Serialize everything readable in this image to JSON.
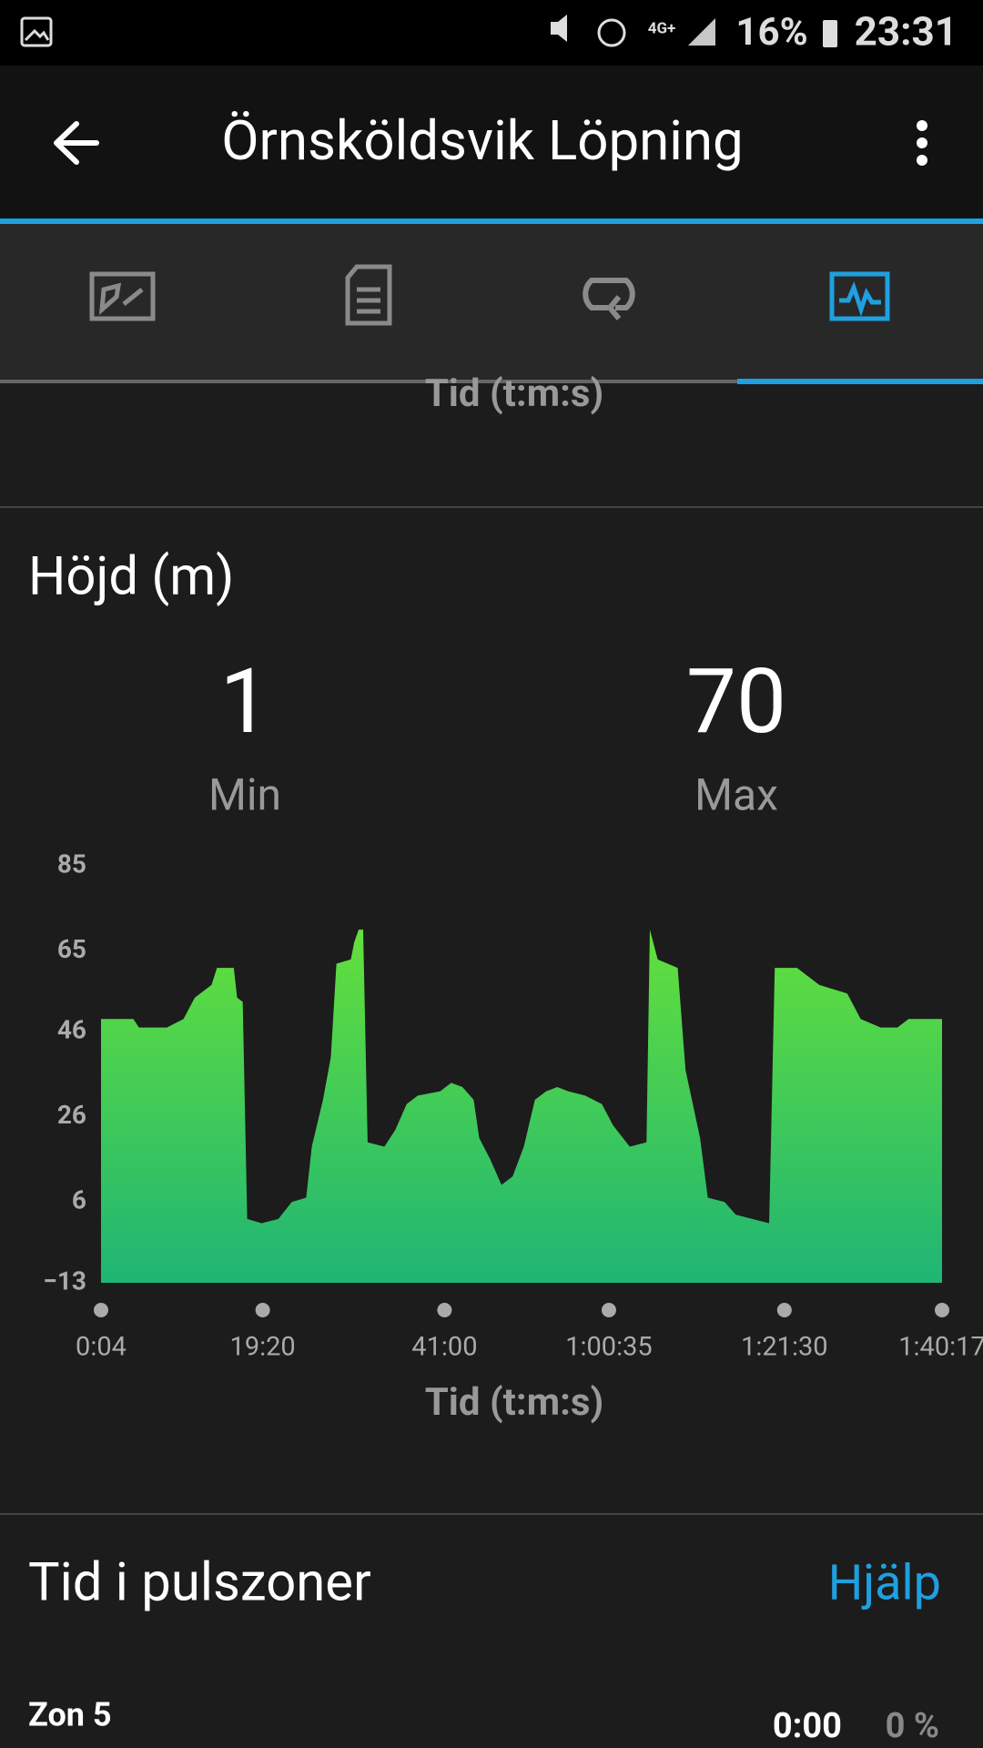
{
  "status_bar": {
    "network": "4G+",
    "battery": "16%",
    "time": "23:31"
  },
  "app_bar": {
    "title": "Örnsköldsvik Löpning"
  },
  "previous_section": {
    "axis_label": "Tid (t:m:s)"
  },
  "elevation": {
    "title": "Höjd (m)",
    "min": {
      "value": 1,
      "label": "Min"
    },
    "max": {
      "value": 70,
      "label": "Max"
    }
  },
  "chart_data": {
    "type": "area",
    "x_label": "Tid (t:m:s)",
    "x": [
      4,
      235,
      275,
      475,
      594,
      674,
      794,
      833,
      953,
      977,
      1017,
      1049,
      1152,
      1272,
      1368,
      1471,
      1511,
      1591,
      1647,
      1687,
      1790,
      1814,
      1846,
      1878,
      1910,
      2030,
      2109,
      2189,
      2269,
      2428,
      2508,
      2588,
      2668,
      2708,
      2787,
      2867,
      2947,
      3027,
      3106,
      3186,
      3266,
      3345,
      3465,
      3585,
      3665,
      3784,
      3904,
      3928,
      3984,
      4127,
      4183,
      4287,
      4342,
      4462,
      4542,
      4781,
      4821,
      4980,
      5140,
      5339,
      5435,
      5578,
      5698,
      5778,
      6017
    ],
    "values": [
      49,
      49,
      47,
      47,
      49,
      54,
      57,
      61,
      61,
      54,
      53,
      2,
      1,
      2,
      6,
      7,
      19,
      30,
      40,
      62,
      63,
      67,
      70,
      70,
      20,
      19,
      23,
      29,
      31,
      32,
      34,
      33,
      30,
      21,
      16,
      10,
      12,
      19,
      30,
      32,
      33,
      32,
      31,
      29,
      24,
      19,
      20,
      70,
      63,
      61,
      37,
      21,
      7,
      6,
      3,
      1,
      61,
      61,
      57,
      55,
      49,
      47,
      47,
      49,
      49
    ],
    "gradient": [
      "#63e03b",
      "#1fb575"
    ],
    "xlim": [
      4,
      6017
    ],
    "xticks": [
      {
        "value": 4,
        "label": "0:04"
      },
      {
        "value": 1160,
        "label": "19:20"
      },
      {
        "value": 2460,
        "label": "41:00"
      },
      {
        "value": 3635,
        "label": "1:00:35"
      },
      {
        "value": 4890,
        "label": "1:21:30"
      },
      {
        "value": 6017,
        "label": "1:40:17"
      }
    ],
    "ylim": [
      -13,
      85
    ],
    "yticks": [
      {
        "value": -13,
        "label": "−13"
      },
      6,
      26,
      46,
      65,
      85
    ],
    "grid": false
  },
  "heart_zones": {
    "title": "Tid i pulszoner",
    "help": "Hjälp",
    "zones": [
      {
        "name": "Zon 5",
        "time": "0:00",
        "percent": "0 %"
      }
    ]
  }
}
